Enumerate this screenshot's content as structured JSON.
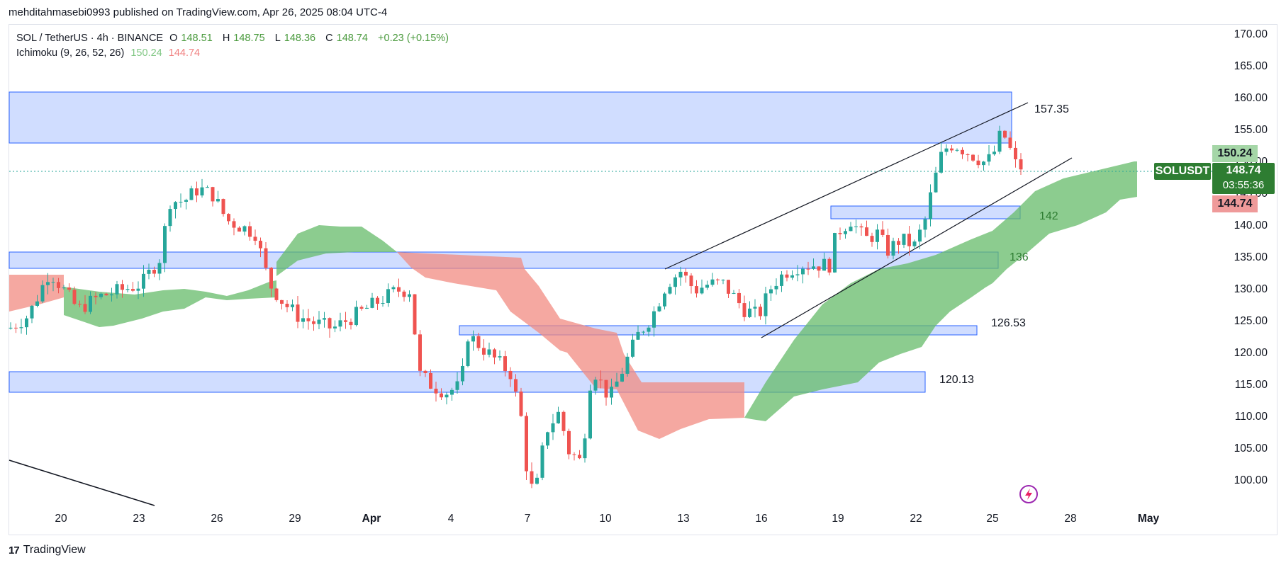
{
  "attribution": "mehditahmasebi0993 published on TradingView.com, Apr 26, 2025 08:04 UTC-4",
  "legend": {
    "symbol": "SOL / TetherUS · 4h · BINANCE",
    "open_label": "O",
    "open": "148.51",
    "high_label": "H",
    "high": "148.75",
    "low_label": "L",
    "low": "148.36",
    "close_label": "C",
    "close": "148.74",
    "change": "+0.23 (+0.15%)",
    "indicator": "Ichimoku (9, 26, 52, 26)",
    "ind_val1": "150.24",
    "ind_val2": "144.74"
  },
  "y_axis": [
    "170.00",
    "165.00",
    "160.00",
    "155.00",
    "150.00",
    "145.00",
    "140.00",
    "135.00",
    "130.00",
    "125.00",
    "120.00",
    "115.00",
    "110.00",
    "105.00",
    "100.00"
  ],
  "x_axis": [
    "20",
    "23",
    "26",
    "29",
    "Apr",
    "4",
    "7",
    "10",
    "13",
    "16",
    "19",
    "22",
    "25",
    "28",
    "May"
  ],
  "levels": {
    "l1": "157.35",
    "l2": "142",
    "l3": "136",
    "l4": "126.53",
    "l5": "120.13"
  },
  "price_tags": {
    "symbol": "SOLUSDT",
    "price": "148.74",
    "countdown": "03:55:36",
    "span_a": "150.24",
    "span_b": "144.74"
  },
  "footer_logo": "TradingView",
  "colors": {
    "up": "#26a69a",
    "down": "#ef5350",
    "zone": "#2962ff",
    "cloud_bull": "#4caf50",
    "cloud_bear": "#f44336"
  },
  "chart_data": {
    "type": "candlestick",
    "symbol": "SOL / TetherUS",
    "timeframe": "4h",
    "ylim": [
      96,
      172
    ],
    "last": {
      "open": 148.51,
      "high": 148.75,
      "low": 148.36,
      "close": 148.74
    },
    "support_resistance_zones": [
      {
        "top": 161,
        "bottom": 153
      },
      {
        "top": 143.3,
        "bottom": 141.5
      },
      {
        "top": 136,
        "bottom": 133.5
      },
      {
        "top": 124.8,
        "bottom": 123.5
      },
      {
        "top": 117.5,
        "bottom": 114.3
      }
    ],
    "labeled_levels": [
      157.35,
      142,
      136,
      126.53,
      120.13
    ]
  }
}
